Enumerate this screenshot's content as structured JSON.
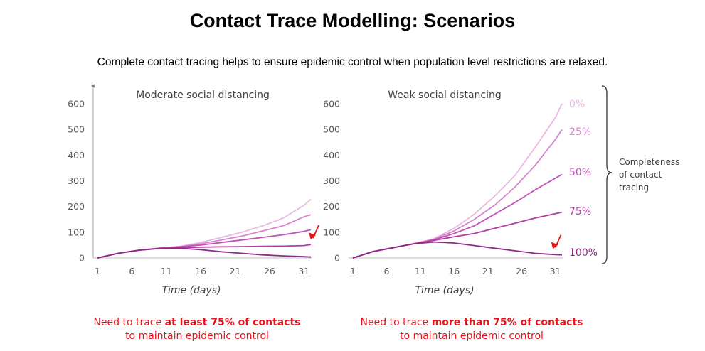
{
  "page": {
    "title": "Contact Trace Modelling: Scenarios",
    "subtitle": "Complete contact tracing helps to ensure epidemic control when population level restrictions are relaxed."
  },
  "colors": {
    "0%": "#ebb8e2",
    "25%": "#d884cf",
    "50%": "#c54fb8",
    "75%": "#b23aa4",
    "100%": "#8e2a86",
    "arrow": "#e8141b",
    "axis": "#bfbfbf",
    "tick_text": "#595959",
    "bracket": "#404040"
  },
  "legend": {
    "bracket_label": [
      "Completeness",
      "of contact",
      "tracing"
    ]
  },
  "notes": {
    "left": {
      "pre": "Need to trace ",
      "bold": "at least 75% of contacts",
      "line2": "to maintain epidemic control"
    },
    "right": {
      "pre": "Need to trace ",
      "bold": "more than 75% of contacts",
      "line2": "to maintain epidemic control"
    }
  },
  "chart_data": [
    {
      "type": "line",
      "title": "Moderate social distancing",
      "xlabel": "Time (days)",
      "ylabel": "",
      "xlim": [
        1,
        32
      ],
      "ylim": [
        0,
        600
      ],
      "xticks": [
        1,
        6,
        11,
        16,
        21,
        26,
        31
      ],
      "yticks": [
        0,
        100,
        200,
        300,
        400,
        500,
        600
      ],
      "x": [
        1,
        4,
        7,
        10,
        13,
        16,
        19,
        22,
        25,
        28,
        31,
        32
      ],
      "series": [
        {
          "name": "0%",
          "values": [
            0,
            18,
            30,
            38,
            45,
            60,
            80,
            100,
            125,
            155,
            205,
            228
          ]
        },
        {
          "name": "25%",
          "values": [
            0,
            18,
            30,
            38,
            44,
            55,
            70,
            85,
            105,
            125,
            160,
            168
          ]
        },
        {
          "name": "50%",
          "values": [
            0,
            18,
            30,
            38,
            43,
            50,
            60,
            70,
            80,
            90,
            103,
            110
          ]
        },
        {
          "name": "75%",
          "values": [
            0,
            18,
            30,
            37,
            40,
            42,
            43,
            44,
            45,
            46,
            48,
            52
          ]
        },
        {
          "name": "100%",
          "values": [
            0,
            18,
            30,
            37,
            38,
            32,
            24,
            18,
            12,
            8,
            5,
            4
          ]
        }
      ],
      "annotations": [
        {
          "type": "arrow",
          "target_x": 32,
          "target_y": 55
        }
      ]
    },
    {
      "type": "line",
      "title": "Weak social distancing",
      "xlabel": "Time (days)",
      "ylabel": "",
      "xlim": [
        1,
        32
      ],
      "ylim": [
        0,
        600
      ],
      "xticks": [
        1,
        6,
        11,
        16,
        21,
        26,
        31
      ],
      "yticks": [
        0,
        100,
        200,
        300,
        400,
        500,
        600
      ],
      "x": [
        1,
        4,
        7,
        10,
        13,
        16,
        19,
        22,
        25,
        28,
        31,
        32
      ],
      "series": [
        {
          "name": "0%",
          "values": [
            0,
            25,
            40,
            55,
            75,
            115,
            170,
            240,
            320,
            430,
            545,
            600
          ]
        },
        {
          "name": "25%",
          "values": [
            0,
            25,
            40,
            55,
            72,
            105,
            150,
            205,
            275,
            360,
            460,
            500
          ]
        },
        {
          "name": "50%",
          "values": [
            0,
            25,
            40,
            55,
            70,
            95,
            125,
            170,
            215,
            265,
            310,
            325
          ]
        },
        {
          "name": "75%",
          "values": [
            0,
            25,
            40,
            55,
            68,
            82,
            95,
            115,
            135,
            155,
            172,
            178
          ]
        },
        {
          "name": "100%",
          "values": [
            0,
            25,
            40,
            55,
            62,
            58,
            48,
            38,
            28,
            18,
            13,
            12
          ]
        }
      ],
      "annotations": [
        {
          "type": "arrow",
          "target_x": 31,
          "target_y": 18
        }
      ]
    }
  ]
}
